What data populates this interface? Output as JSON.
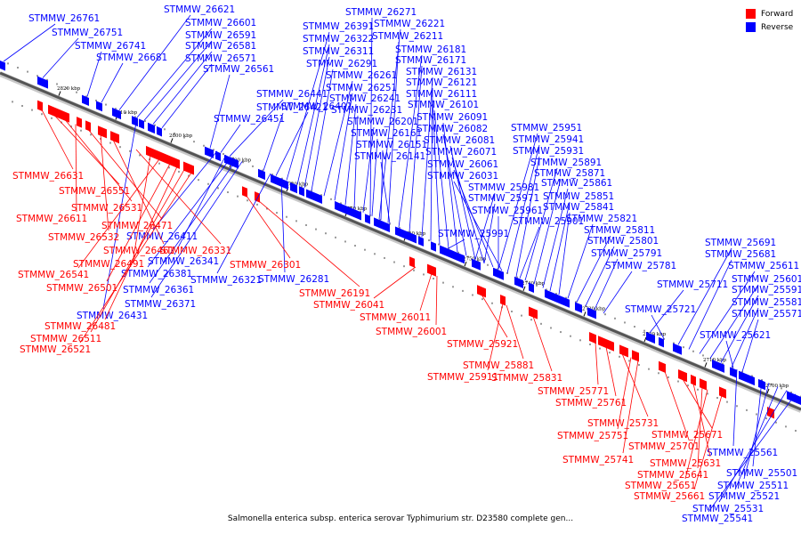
{
  "caption": "Salmonella enterica subsp. enterica serovar Typhimurium str. D23580 complete gen...",
  "legend": [
    {
      "label": "Forward",
      "color": "#ff0000"
    },
    {
      "label": "Reverse",
      "color": "#0000ff"
    }
  ],
  "ticks": [
    "2820 kbp",
    "2810 kbp",
    "2800 kbp",
    "2790 kbp",
    "2780 kbp",
    "2770 kbp",
    "2760 kbp",
    "2750 kbp",
    "2740 kbp",
    "2730 kbp",
    "2720 kbp",
    "2710 kbp",
    "2700 kbp"
  ],
  "reverse_labels": [
    "STMMW_26761",
    "STMMW_26751",
    "STMMW_26741",
    "STMMW_26681",
    "STMMW_26621",
    "STMMW_26601",
    "STMMW_26591",
    "STMMW_26581",
    "STMMW_26571",
    "STMMW_26561",
    "STMMW_26451",
    "STMMW_26441",
    "STMMW_26421",
    "STMMW_26401",
    "STMMW_26391",
    "STMMW_26322",
    "STMMW_26311",
    "STMMW_26291",
    "STMMW_26261",
    "STMMW_26251",
    "STMMW_26241",
    "STMMW_26231",
    "STMMW_26201",
    "STMMW_26161",
    "STMMW_26151",
    "STMMW_26141",
    "STMMW_26271",
    "STMMW_26221",
    "STMMW_26211",
    "STMMW_26181",
    "STMMW_26171",
    "STMMW_26131",
    "STMMW_26121",
    "STMMW_26111",
    "STMMW_26101",
    "STMMW_26091",
    "STMMW_26082",
    "STMMW_26081",
    "STMMW_26071",
    "STMMW_26061",
    "STMMW_26031",
    "STMMW_25981",
    "STMMW_25971",
    "STMMW_25961",
    "STMMW_25991",
    "STMMW_25901",
    "STMMW_25951",
    "STMMW_25941",
    "STMMW_25931",
    "STMMW_25891",
    "STMMW_25871",
    "STMMW_25861",
    "STMMW_25851",
    "STMMW_25841",
    "STMMW_25821",
    "STMMW_25811",
    "STMMW_25801",
    "STMMW_25791",
    "STMMW_25781",
    "STMMW_25711",
    "STMMW_25721",
    "STMMW_25691",
    "STMMW_25681",
    "STMMW_25611",
    "STMMW_25601",
    "STMMW_25591",
    "STMMW_25581",
    "STMMW_25571",
    "STMMW_25621",
    "STMMW_26411",
    "STMMW_26341",
    "STMMW_26381",
    "STMMW_26361",
    "STMMW_26371",
    "STMMW_26431",
    "STMMW_26321",
    "STMMW_26281",
    "STMMW_25561",
    "STMMW_25501",
    "STMMW_25511",
    "STMMW_25521",
    "STMMW_25531",
    "STMMW_25541"
  ],
  "forward_labels": [
    "STMMW_26631",
    "STMMW_26551",
    "STMMW_26531",
    "STMMW_26611",
    "STMMW_26471",
    "STMMW_26532",
    "STMMW_26461",
    "STMMW_26331",
    "STMMW_26491",
    "STMMW_26541",
    "STMMW_26501",
    "STMMW_26481",
    "STMMW_26511",
    "STMMW_26521",
    "STMMW_26301",
    "STMMW_26191",
    "STMMW_26041",
    "STMMW_26011",
    "STMMW_26001",
    "STMMW_25921",
    "STMMW_25911",
    "STMMW_25881",
    "STMMW_25831",
    "STMMW_25771",
    "STMMW_25761",
    "STMMW_25731",
    "STMMW_25751",
    "STMMW_25741",
    "STMMW_25701",
    "STMMW_25671",
    "STMMW_25631",
    "STMMW_25641",
    "STMMW_25651",
    "STMMW_25661"
  ]
}
